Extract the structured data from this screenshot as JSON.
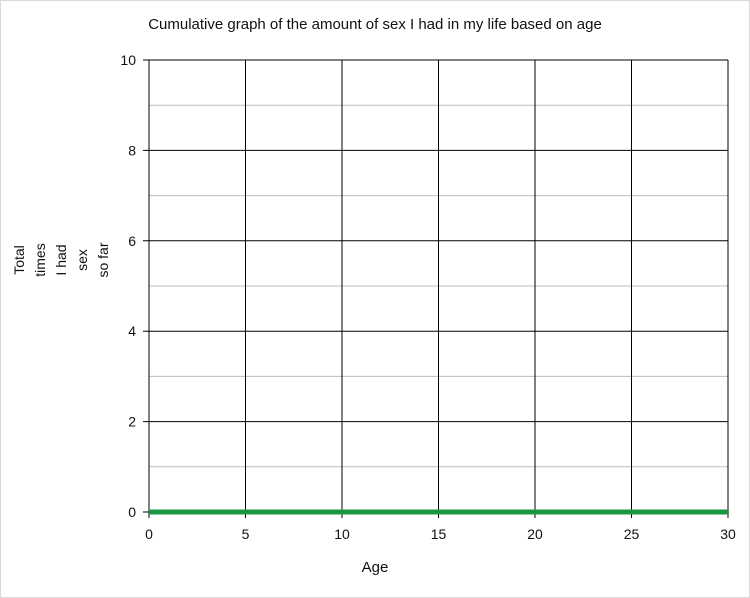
{
  "chart_data": {
    "type": "line",
    "title": "Cumulative graph of the amount of sex I had in my life based on age",
    "xlabel": "Age",
    "ylabel_lines": [
      "Total",
      "times",
      "I had",
      "sex",
      "so far"
    ],
    "xlim": [
      0,
      30
    ],
    "ylim": [
      0,
      10
    ],
    "xticks": [
      0,
      5,
      10,
      15,
      20,
      25,
      30
    ],
    "yticks": [
      0,
      2,
      4,
      6,
      8,
      10
    ],
    "y_minor_ticks": [
      1,
      3,
      5,
      7,
      9
    ],
    "grid": true,
    "series": [
      {
        "x": [
          0,
          30
        ],
        "y": [
          0,
          0
        ],
        "color": "#1a9641"
      }
    ]
  }
}
